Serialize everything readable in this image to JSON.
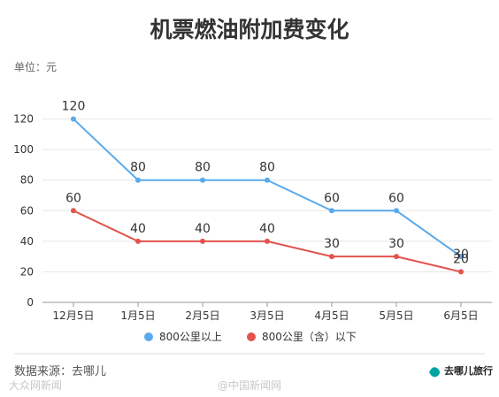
{
  "chart_data": {
    "type": "line",
    "title": "机票燃油附加费变化",
    "unit_label": "单位：元",
    "categories": [
      "12月5日",
      "1月5日",
      "2月5日",
      "3月5日",
      "4月5日",
      "5月5日",
      "6月5日"
    ],
    "series": [
      {
        "name": "800公里以上",
        "color": "#5aa9ec",
        "values": [
          120,
          80,
          80,
          80,
          60,
          60,
          30
        ]
      },
      {
        "name": "800公里（含）以下",
        "color": "#e3534d",
        "values": [
          60,
          40,
          40,
          40,
          30,
          30,
          20
        ]
      }
    ],
    "ylim": [
      0,
      140
    ],
    "yticks": [
      0,
      20,
      40,
      60,
      80,
      100,
      120
    ],
    "grid": true,
    "legend_position": "bottom"
  },
  "footer": {
    "source": "数据来源：去哪儿",
    "brand": "去哪儿旅行"
  },
  "watermark": {
    "left": "大众网新闻",
    "center": "@中国新闻网"
  }
}
